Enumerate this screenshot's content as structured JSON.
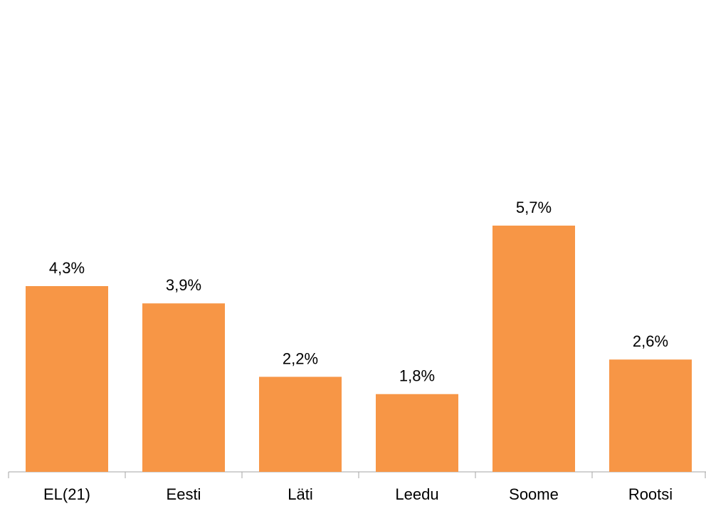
{
  "chart_data": {
    "type": "bar",
    "categories": [
      "EL(21)",
      "Eesti",
      "Läti",
      "Leedu",
      "Soome",
      "Rootsi"
    ],
    "values": [
      4.3,
      3.9,
      2.2,
      1.8,
      5.7,
      2.6
    ],
    "value_labels": [
      "4,3%",
      "3,9%",
      "2,2%",
      "1,8%",
      "5,7%",
      "2,6%"
    ],
    "color": "#f79646"
  }
}
